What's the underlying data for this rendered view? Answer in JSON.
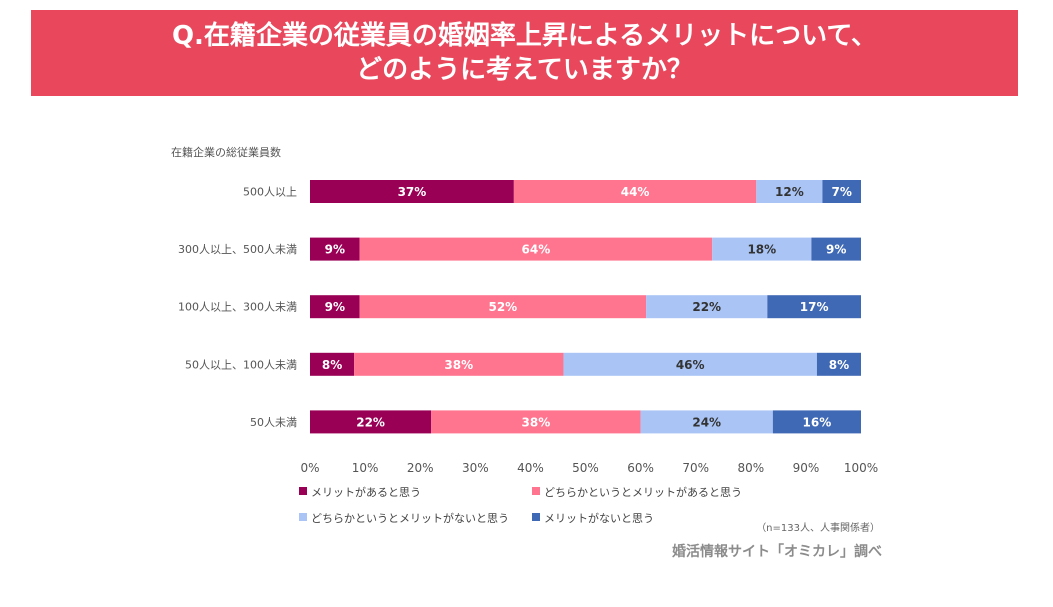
{
  "header": {
    "title_line1": "Q.在籍企業の従業員の婚姻率上昇によるメリットについて、",
    "title_line2": "どのように考えていますか？"
  },
  "chart_data": {
    "type": "bar",
    "orientation": "horizontal",
    "stacked": "percent",
    "category_axis_title": "在籍企業の総従業員数",
    "categories": [
      "500人以上",
      "300人以上、500人未満",
      "100人以上、300人未満",
      "50人以上、100人未満",
      "50人未満"
    ],
    "series": [
      {
        "name": "メリットがあると思う",
        "color": "#990055",
        "label_color": "#ffffff",
        "values": [
          37,
          9,
          9,
          8,
          22
        ]
      },
      {
        "name": "どちらかというとメリットがあると思う",
        "color": "#ff7590",
        "label_color": "#ffffff",
        "values": [
          44,
          64,
          52,
          38,
          38
        ]
      },
      {
        "name": "どちらかというとメリットがないと思う",
        "color": "#a9c4f5",
        "label_color": "#333333",
        "values": [
          12,
          18,
          22,
          46,
          24
        ]
      },
      {
        "name": "メリットがないと思う",
        "color": "#3f69b4",
        "label_color": "#ffffff",
        "values": [
          7,
          9,
          17,
          8,
          16
        ]
      }
    ],
    "xlim": [
      0,
      100
    ],
    "xticks": [
      0,
      10,
      20,
      30,
      40,
      50,
      60,
      70,
      80,
      90,
      100
    ],
    "tick_suffix": "%",
    "label_suffix": "%",
    "legend_position": "bottom",
    "note": "（n=133人、人事関係者）"
  },
  "footer": {
    "credit": "婚活情報サイト「オミカレ」調べ"
  }
}
